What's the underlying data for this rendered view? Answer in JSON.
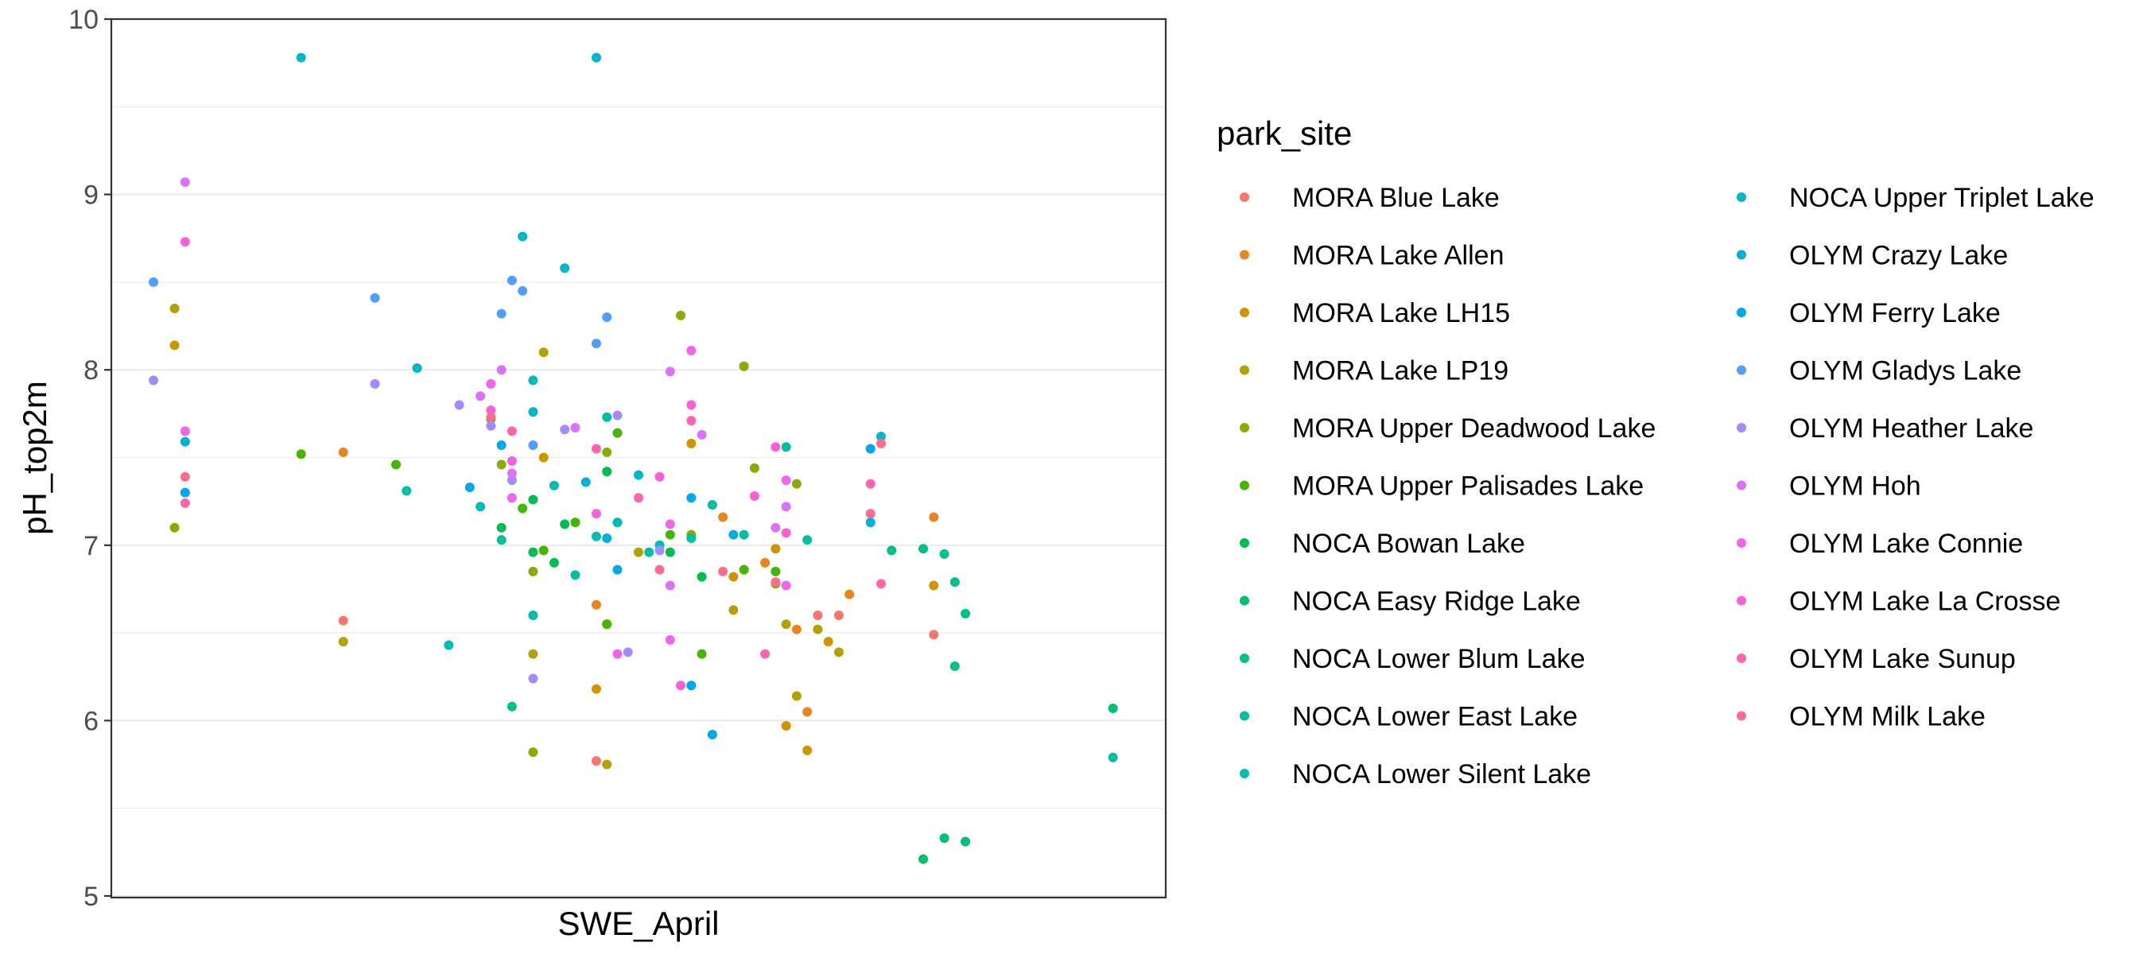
{
  "chart_data": {
    "type": "scatter",
    "xlabel": "SWE_April",
    "ylabel": "pH_top2m",
    "ylim": [
      5,
      10
    ],
    "xlim": [
      0,
      100
    ],
    "yticks": [
      "5",
      "6",
      "7",
      "8",
      "9",
      "10"
    ],
    "grid": true,
    "x_tick_labels_shown": false,
    "legend": {
      "title": "park_site",
      "placement": "right",
      "columns": 2
    },
    "series": [
      {
        "name": "MORA Blue Lake",
        "color": "#F8766D",
        "points": [
          [
            22,
            6.57
          ],
          [
            46,
            5.77
          ],
          [
            67,
            6.6
          ],
          [
            69,
            6.6
          ],
          [
            78,
            6.49
          ]
        ]
      },
      {
        "name": "MORA Lake Allen",
        "color": "#E7851E",
        "points": [
          [
            22,
            7.53
          ],
          [
            46,
            6.66
          ],
          [
            58,
            7.16
          ],
          [
            62,
            6.9
          ],
          [
            65,
            6.52
          ],
          [
            66,
            6.05
          ],
          [
            70,
            6.72
          ],
          [
            78,
            7.16
          ]
        ]
      },
      {
        "name": "MORA Lake LH15",
        "color": "#D09400",
        "points": [
          [
            6,
            8.14
          ],
          [
            41,
            7.5
          ],
          [
            46,
            6.18
          ],
          [
            55,
            7.58
          ],
          [
            59,
            6.82
          ],
          [
            63,
            6.98
          ],
          [
            64,
            5.97
          ],
          [
            66,
            5.83
          ],
          [
            68,
            6.45
          ],
          [
            78,
            6.77
          ]
        ]
      },
      {
        "name": "MORA Lake LP19",
        "color": "#B2A100",
        "points": [
          [
            6,
            8.35
          ],
          [
            22,
            6.45
          ],
          [
            40,
            6.38
          ],
          [
            41,
            8.1
          ],
          [
            47,
            5.75
          ],
          [
            50,
            6.96
          ],
          [
            59,
            6.63
          ],
          [
            60,
            8.02
          ],
          [
            64,
            6.55
          ],
          [
            65,
            6.14
          ],
          [
            67,
            6.52
          ],
          [
            69,
            6.39
          ]
        ]
      },
      {
        "name": "MORA Upper Deadwood Lake",
        "color": "#89AC00",
        "points": [
          [
            6,
            7.1
          ],
          [
            37,
            7.46
          ],
          [
            40,
            5.82
          ],
          [
            40,
            6.85
          ],
          [
            47,
            6.55
          ],
          [
            47,
            7.53
          ],
          [
            54,
            8.31
          ],
          [
            55,
            7.06
          ],
          [
            60,
            8.02
          ],
          [
            61,
            7.44
          ],
          [
            63,
            6.78
          ],
          [
            65,
            7.35
          ]
        ]
      },
      {
        "name": "MORA Upper Palisades Lake",
        "color": "#45B500",
        "points": [
          [
            18,
            7.52
          ],
          [
            27,
            7.46
          ],
          [
            36,
            7.72
          ],
          [
            39,
            7.21
          ],
          [
            41,
            6.97
          ],
          [
            44,
            7.13
          ],
          [
            47,
            6.55
          ],
          [
            48,
            7.64
          ],
          [
            53,
            7.06
          ],
          [
            56,
            6.38
          ],
          [
            60,
            6.86
          ],
          [
            63,
            6.85
          ]
        ]
      },
      {
        "name": "NOCA Bowan Lake",
        "color": "#00BC51",
        "points": [
          [
            37,
            7.1
          ],
          [
            40,
            7.26
          ],
          [
            40,
            6.96
          ],
          [
            42,
            6.9
          ],
          [
            43,
            7.12
          ],
          [
            47,
            7.42
          ],
          [
            53,
            6.96
          ],
          [
            56,
            6.82
          ]
        ]
      },
      {
        "name": "NOCA Easy Ridge Lake",
        "color": "#00C071",
        "points": [
          [
            77,
            5.21
          ],
          [
            79,
            5.33
          ],
          [
            81,
            5.31
          ],
          [
            95,
            6.07
          ]
        ]
      },
      {
        "name": "NOCA Lower Blum Lake",
        "color": "#00C18A",
        "points": [
          [
            38,
            6.08
          ],
          [
            74,
            6.97
          ],
          [
            77,
            6.98
          ],
          [
            79,
            6.95
          ],
          [
            80,
            6.79
          ],
          [
            80,
            6.31
          ],
          [
            81,
            6.61
          ]
        ]
      },
      {
        "name": "NOCA Lower East Lake",
        "color": "#00BFA0",
        "points": [
          [
            28,
            7.31
          ],
          [
            37,
            7.03
          ],
          [
            40,
            6.6
          ],
          [
            44,
            6.83
          ],
          [
            47,
            7.73
          ],
          [
            51,
            6.96
          ],
          [
            55,
            7.04
          ],
          [
            57,
            7.23
          ],
          [
            60,
            7.06
          ],
          [
            64,
            7.56
          ],
          [
            66,
            7.03
          ],
          [
            95,
            5.79
          ]
        ]
      },
      {
        "name": "NOCA Lower Silent Lake",
        "color": "#00BCB4",
        "points": [
          [
            32,
            6.43
          ],
          [
            35,
            7.22
          ],
          [
            40,
            7.94
          ],
          [
            42,
            7.34
          ],
          [
            46,
            7.05
          ],
          [
            48,
            7.13
          ],
          [
            52,
            7.0
          ]
        ]
      },
      {
        "name": "NOCA Upper Triplet Lake",
        "color": "#00B7C7",
        "points": [
          [
            18,
            9.78
          ],
          [
            29,
            8.01
          ],
          [
            39,
            8.76
          ],
          [
            40,
            7.76
          ],
          [
            43,
            8.58
          ],
          [
            46,
            9.78
          ],
          [
            50,
            7.4
          ],
          [
            73,
            7.62
          ]
        ]
      },
      {
        "name": "OLYM Crazy Lake",
        "color": "#00B0DA",
        "points": [
          [
            7,
            7.59
          ],
          [
            45,
            7.36
          ],
          [
            47,
            7.04
          ],
          [
            59,
            7.06
          ],
          [
            72,
            7.13
          ]
        ]
      },
      {
        "name": "OLYM Ferry Lake",
        "color": "#00A7E9",
        "points": [
          [
            7,
            7.3
          ],
          [
            34,
            7.33
          ],
          [
            37,
            7.57
          ],
          [
            48,
            6.86
          ],
          [
            55,
            7.27
          ],
          [
            55,
            6.2
          ],
          [
            57,
            5.92
          ],
          [
            72,
            7.55
          ]
        ]
      },
      {
        "name": "OLYM Gladys Lake",
        "color": "#529EFF",
        "points": [
          [
            4,
            8.5
          ],
          [
            25,
            8.41
          ],
          [
            37,
            8.32
          ],
          [
            38,
            8.51
          ],
          [
            39,
            8.45
          ],
          [
            40,
            7.57
          ],
          [
            46,
            8.15
          ],
          [
            47,
            8.3
          ]
        ]
      },
      {
        "name": "OLYM Heather Lake",
        "color": "#A58AFF",
        "points": [
          [
            4,
            7.94
          ],
          [
            25,
            7.92
          ],
          [
            33,
            7.8
          ],
          [
            36,
            7.68
          ],
          [
            38,
            7.37
          ],
          [
            40,
            6.24
          ],
          [
            43,
            7.66
          ],
          [
            48,
            7.74
          ],
          [
            49,
            6.39
          ],
          [
            52,
            6.97
          ]
        ]
      },
      {
        "name": "OLYM Hoh",
        "color": "#DB72FB",
        "points": [
          [
            7,
            9.07
          ],
          [
            35,
            7.85
          ],
          [
            37,
            8.0
          ],
          [
            38,
            7.41
          ],
          [
            44,
            7.67
          ],
          [
            53,
            6.77
          ],
          [
            53,
            7.99
          ],
          [
            56,
            7.63
          ],
          [
            63,
            7.1
          ],
          [
            64,
            7.22
          ]
        ]
      },
      {
        "name": "OLYM Lake Connie",
        "color": "#F066EA",
        "points": [
          [
            7,
            7.65
          ],
          [
            36,
            7.92
          ],
          [
            38,
            7.27
          ],
          [
            48,
            6.38
          ],
          [
            53,
            6.46
          ],
          [
            53,
            7.12
          ],
          [
            55,
            8.11
          ],
          [
            64,
            6.77
          ],
          [
            64,
            7.37
          ]
        ]
      },
      {
        "name": "OLYM Lake La Crosse",
        "color": "#FB61D7",
        "points": [
          [
            7,
            8.73
          ],
          [
            36,
            7.77
          ],
          [
            38,
            7.48
          ],
          [
            46,
            7.18
          ],
          [
            52,
            7.39
          ],
          [
            54,
            6.2
          ],
          [
            55,
            7.8
          ],
          [
            61,
            7.28
          ],
          [
            63,
            7.56
          ],
          [
            64,
            7.07
          ]
        ]
      },
      {
        "name": "OLYM Lake Sunup",
        "color": "#FF65AC",
        "points": [
          [
            7,
            7.24
          ],
          [
            38,
            7.65
          ],
          [
            46,
            7.55
          ],
          [
            50,
            7.27
          ],
          [
            55,
            7.71
          ],
          [
            62,
            6.38
          ],
          [
            72,
            7.35
          ],
          [
            73,
            6.78
          ]
        ]
      },
      {
        "name": "OLYM Milk Lake",
        "color": "#FF6C91",
        "points": [
          [
            7,
            7.39
          ],
          [
            36,
            7.73
          ],
          [
            52,
            6.86
          ],
          [
            58,
            6.85
          ],
          [
            63,
            6.79
          ],
          [
            72,
            7.18
          ],
          [
            73,
            7.58
          ]
        ]
      }
    ]
  }
}
